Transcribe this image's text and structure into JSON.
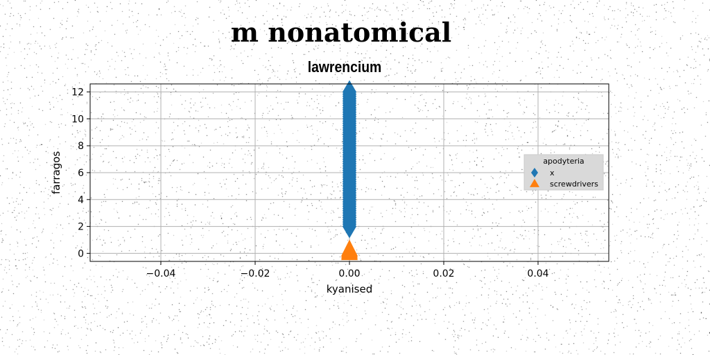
{
  "suptitle": "m nonatomical",
  "chart_data": {
    "type": "scatter",
    "title": "lawrencium",
    "xlabel": "kyanised",
    "ylabel": "farragos",
    "xlim": [
      -0.055,
      0.055
    ],
    "ylim": [
      -0.6,
      12.6
    ],
    "xticks": [
      -0.04,
      -0.02,
      0.0,
      0.02,
      0.04
    ],
    "xtick_labels": [
      "−0.04",
      "−0.02",
      "0.00",
      "0.02",
      "0.04"
    ],
    "yticks": [
      0,
      2,
      4,
      6,
      8,
      10,
      12
    ],
    "ytick_labels": [
      "0",
      "2",
      "4",
      "6",
      "8",
      "10",
      "12"
    ],
    "grid": true,
    "legend": {
      "title": "apodyteria",
      "placement": "center-right"
    },
    "series": [
      {
        "name": "x",
        "marker": "diamond",
        "color": "#1f77b4",
        "x": [
          0,
          0,
          0,
          0,
          0,
          0,
          0,
          0,
          0,
          0,
          0,
          0,
          0,
          0,
          0,
          0,
          0,
          0,
          0,
          0,
          0,
          0,
          0,
          0,
          0,
          0,
          0,
          0,
          0,
          0,
          0,
          0,
          0,
          0,
          0,
          0,
          0,
          0,
          0,
          0,
          0,
          0,
          0,
          0,
          0,
          0,
          0,
          0,
          0,
          0,
          0,
          0,
          0,
          0,
          0,
          0,
          0,
          0,
          0,
          0,
          0
        ],
        "y": [
          2.0,
          2.17,
          2.33,
          2.5,
          2.67,
          2.83,
          3.0,
          3.17,
          3.33,
          3.5,
          3.67,
          3.83,
          4.0,
          4.17,
          4.33,
          4.5,
          4.67,
          4.83,
          5.0,
          5.17,
          5.33,
          5.5,
          5.67,
          5.83,
          6.0,
          6.17,
          6.33,
          6.5,
          6.67,
          6.83,
          7.0,
          7.17,
          7.33,
          7.5,
          7.67,
          7.83,
          8.0,
          8.17,
          8.33,
          8.5,
          8.67,
          8.83,
          9.0,
          9.17,
          9.33,
          9.5,
          9.67,
          9.83,
          10.0,
          10.17,
          10.33,
          10.5,
          10.67,
          10.83,
          11.0,
          11.17,
          11.33,
          11.5,
          11.67,
          11.83,
          12.0
        ]
      },
      {
        "name": "screwdrivers",
        "marker": "triangle",
        "color": "#ff7f0e",
        "x": [
          0,
          0,
          0,
          0
        ],
        "y": [
          0.0,
          0.1,
          0.2,
          0.3
        ]
      }
    ]
  }
}
